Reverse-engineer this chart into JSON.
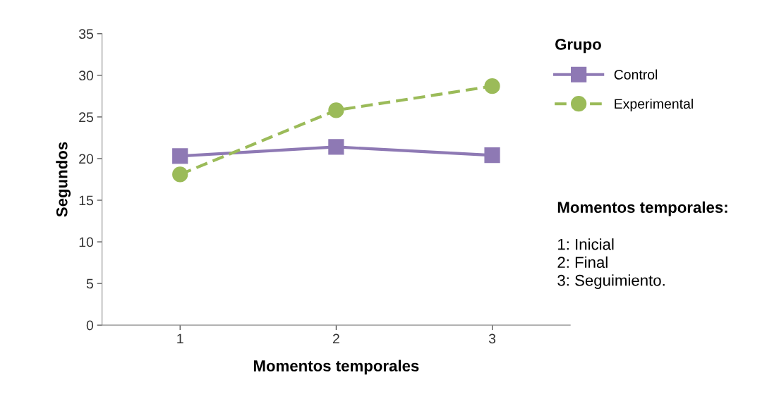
{
  "chart_data": {
    "type": "line",
    "xlabel": "Momentos temporales",
    "ylabel": "Segundos",
    "legend_title": "Grupo",
    "x": [
      1,
      2,
      3
    ],
    "xlim": [
      0.5,
      3.5
    ],
    "xticks": [
      1,
      2,
      3
    ],
    "series": [
      {
        "name": "Control",
        "color": "#8e79b4",
        "values": [
          20.3,
          21.4,
          20.4
        ],
        "marker": "square",
        "line_style": "solid"
      },
      {
        "name": "Experimental",
        "color": "#9bbb59",
        "values": [
          18.1,
          25.8,
          28.7
        ],
        "marker": "circle",
        "line_style": "dashed"
      }
    ],
    "ylim": [
      0,
      35
    ],
    "yticks": [
      0,
      5,
      10,
      15,
      20,
      25,
      30,
      35
    ],
    "grid": false,
    "legend": "right",
    "annotations": [
      "Momentos temporales:",
      "1: Inicial\n2: Final\n3: Seguimiento."
    ]
  }
}
